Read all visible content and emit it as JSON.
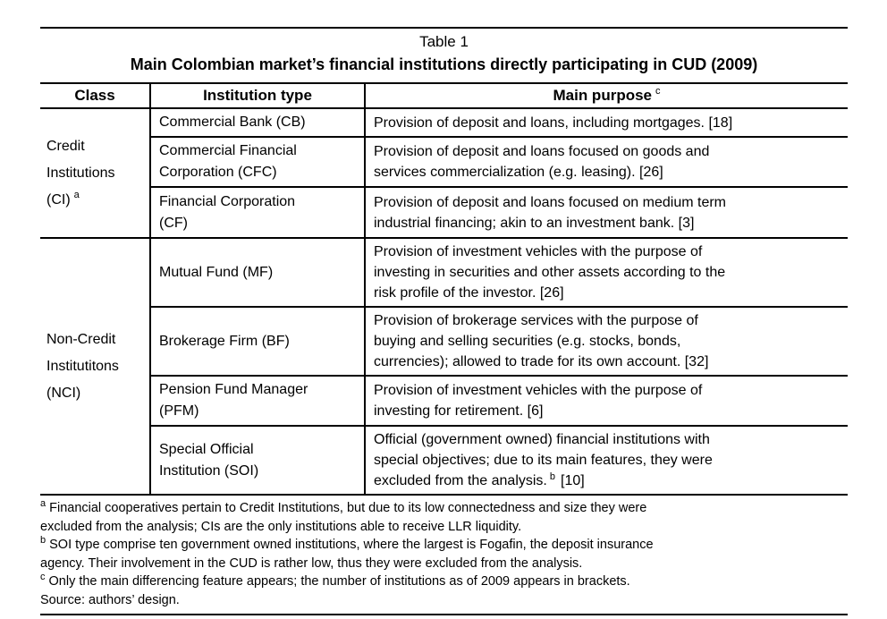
{
  "colors": {
    "text": "#000000",
    "border": "#000000",
    "background": "#ffffff"
  },
  "caption": "Table 1",
  "title": "Main Colombian market’s financial institutions directly participating in CUD (2009)",
  "header": {
    "class": "Class",
    "institution_type": "Institution type",
    "main_purpose": "Main purpose",
    "main_purpose_note": "c"
  },
  "groups": [
    {
      "class_label": "Credit\nInstitutions\n(CI)",
      "class_note": "a",
      "rows": [
        {
          "type": "Commercial Bank (CB)",
          "purpose": "Provision of deposit and loans, including mortgages. [18]"
        },
        {
          "type": "Commercial Financial\nCorporation (CFC)",
          "purpose": "Provision of deposit and loans focused on goods and\nservices commercialization (e.g. leasing). [26]"
        },
        {
          "type": "Financial Corporation\n(CF)",
          "purpose": "Provision of deposit and loans focused on medium term\nindustrial financing; akin to an investment bank. [3]"
        }
      ]
    },
    {
      "class_label": "Non-Credit\nInstitutitons\n(NCI)",
      "rows": [
        {
          "type": "Mutual Fund (MF)",
          "purpose": "Provision of investment vehicles with the purpose of\ninvesting in securities and other assets according to the\nrisk profile of the investor. [26]"
        },
        {
          "type": "Brokerage Firm (BF)",
          "purpose": "Provision of brokerage services with the purpose of\nbuying and selling securities (e.g. stocks, bonds,\ncurrencies); allowed to trade for its own account. [32]"
        },
        {
          "type": "Pension Fund Manager\n(PFM)",
          "purpose": "Provision of investment vehicles with the purpose of\ninvesting for retirement. [6]"
        },
        {
          "type": "Special Official\nInstitution (SOI)",
          "purpose": "Official (government owned) financial institutions with\nspecial objectives; due to its main features, they were\nexcluded from the analysis.",
          "purpose_note": "b",
          "purpose_suffix": "[10]"
        }
      ]
    }
  ],
  "footnotes": {
    "a": {
      "marker": "a",
      "text": "Financial cooperatives pertain to Credit Institutions, but due to its low connectedness and size they were\nexcluded from the analysis; CIs are the only institutions able to receive LLR liquidity."
    },
    "b": {
      "marker": "b",
      "text": "SOI type comprise ten government owned institutions, where the largest is Fogafin, the deposit insurance\nagency. Their involvement in the CUD is rather low, thus they were excluded from the analysis."
    },
    "c": {
      "marker": "c",
      "text": "Only the main differencing feature appears; the number of institutions as of 2009 appears in brackets."
    },
    "source": "Source: authors’ design."
  }
}
